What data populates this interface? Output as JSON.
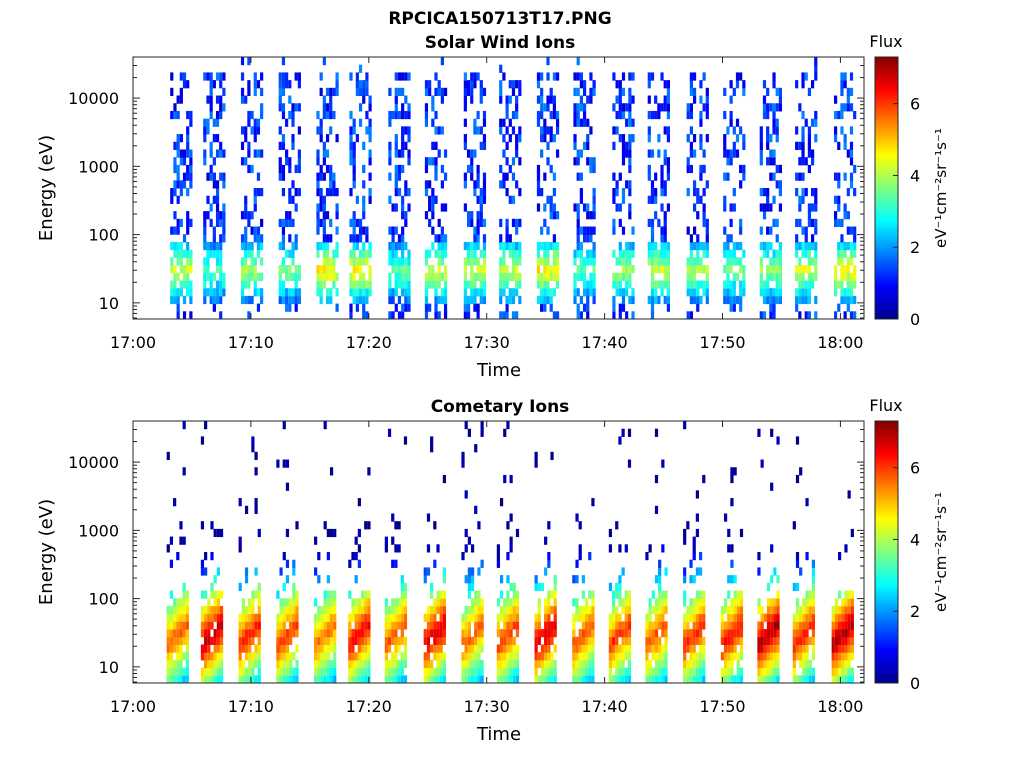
{
  "figure": {
    "title": "RPCICA150713T17.PNG"
  },
  "chart_data": [
    {
      "type": "heatmap",
      "title": "Solar Wind Ions",
      "xlabel": "Time",
      "ylabel": "Energy (eV)",
      "x_ticks": [
        "17:00",
        "17:10",
        "17:20",
        "17:30",
        "17:40",
        "17:50",
        "18:00"
      ],
      "y_ticks": [
        "10",
        "100",
        "1000",
        "10000"
      ],
      "y_scale": "log",
      "xlim": [
        "17:00",
        "18:02"
      ],
      "ylim": [
        5.8,
        40000
      ],
      "colorbar": {
        "title": "Flux",
        "label": "eV⁻¹cm⁻²sr⁻¹s⁻¹",
        "ticks": [
          "0",
          "2",
          "4",
          "6"
        ],
        "range": [
          0,
          7.3
        ],
        "colormap": "jet"
      },
      "sweep_times_min": [
        4.1,
        6.9,
        10.1,
        13.3,
        16.5,
        19.3,
        22.6,
        25.7,
        29.0,
        32.0,
        35.2,
        38.3,
        41.6,
        44.6,
        47.9,
        51.0,
        54.1,
        57.1,
        60.4
      ],
      "peak_flux_energy_ev": 30
    },
    {
      "type": "heatmap",
      "title": "Cometary Ions",
      "xlabel": "Time",
      "ylabel": "Energy (eV)",
      "x_ticks": [
        "17:00",
        "17:10",
        "17:20",
        "17:30",
        "17:40",
        "17:50",
        "18:00"
      ],
      "y_ticks": [
        "10",
        "100",
        "1000",
        "10000"
      ],
      "y_scale": "log",
      "xlim": [
        "17:00",
        "18:02"
      ],
      "ylim": [
        5.8,
        40000
      ],
      "colorbar": {
        "title": "Flux",
        "label": "eV⁻¹cm⁻²sr⁻¹s⁻¹",
        "ticks": [
          "0",
          "2",
          "4",
          "6"
        ],
        "range": [
          0,
          7.3
        ],
        "colormap": "jet"
      },
      "sweep_times_min": [
        3.8,
        6.7,
        9.9,
        13.1,
        16.3,
        19.2,
        22.3,
        25.6,
        28.8,
        31.8,
        35.0,
        38.2,
        41.3,
        44.4,
        47.6,
        50.8,
        53.9,
        56.9,
        60.2
      ],
      "peak_flux_energy_ev": 30
    }
  ]
}
